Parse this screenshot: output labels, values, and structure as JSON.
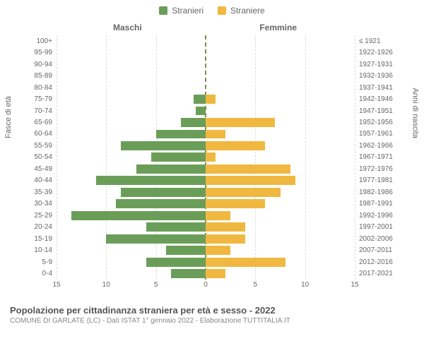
{
  "legend": {
    "male": {
      "label": "Stranieri",
      "color": "#6a9e58"
    },
    "female": {
      "label": "Straniere",
      "color": "#f0b840"
    }
  },
  "headers": {
    "male": "Maschi",
    "female": "Femmine"
  },
  "axis_labels": {
    "left": "Fasce di età",
    "right": "Anni di nascita"
  },
  "chart": {
    "type": "population-pyramid",
    "xlim": 15,
    "xticks": [
      15,
      10,
      5,
      0,
      5,
      10,
      15
    ],
    "background_color": "#ffffff",
    "grid_color": "#dddddd",
    "center_color": "#888855",
    "rows": [
      {
        "age": "100+",
        "birth": "≤ 1921",
        "m": 0,
        "f": 0
      },
      {
        "age": "95-99",
        "birth": "1922-1926",
        "m": 0,
        "f": 0
      },
      {
        "age": "90-94",
        "birth": "1927-1931",
        "m": 0,
        "f": 0
      },
      {
        "age": "85-89",
        "birth": "1932-1936",
        "m": 0,
        "f": 0
      },
      {
        "age": "80-84",
        "birth": "1937-1941",
        "m": 0,
        "f": 0
      },
      {
        "age": "75-79",
        "birth": "1942-1946",
        "m": 1.2,
        "f": 1.0
      },
      {
        "age": "70-74",
        "birth": "1947-1951",
        "m": 1.0,
        "f": 0
      },
      {
        "age": "65-69",
        "birth": "1952-1956",
        "m": 2.5,
        "f": 7.0
      },
      {
        "age": "60-64",
        "birth": "1957-1961",
        "m": 5.0,
        "f": 2.0
      },
      {
        "age": "55-59",
        "birth": "1962-1966",
        "m": 8.5,
        "f": 6.0
      },
      {
        "age": "50-54",
        "birth": "1967-1971",
        "m": 5.5,
        "f": 1.0
      },
      {
        "age": "45-49",
        "birth": "1972-1976",
        "m": 7.0,
        "f": 8.5
      },
      {
        "age": "40-44",
        "birth": "1977-1981",
        "m": 11.0,
        "f": 9.0
      },
      {
        "age": "35-39",
        "birth": "1982-1986",
        "m": 8.5,
        "f": 7.5
      },
      {
        "age": "30-34",
        "birth": "1987-1991",
        "m": 9.0,
        "f": 6.0
      },
      {
        "age": "25-29",
        "birth": "1992-1996",
        "m": 13.5,
        "f": 2.5
      },
      {
        "age": "20-24",
        "birth": "1997-2001",
        "m": 6.0,
        "f": 4.0
      },
      {
        "age": "15-19",
        "birth": "2002-2006",
        "m": 10.0,
        "f": 4.0
      },
      {
        "age": "10-14",
        "birth": "2007-2011",
        "m": 4.0,
        "f": 2.5
      },
      {
        "age": "5-9",
        "birth": "2012-2016",
        "m": 6.0,
        "f": 8.0
      },
      {
        "age": "0-4",
        "birth": "2017-2021",
        "m": 3.5,
        "f": 2.0
      }
    ]
  },
  "footer": {
    "title": "Popolazione per cittadinanza straniera per età e sesso - 2022",
    "subtitle": "COMUNE DI GARLATE (LC) - Dati ISTAT 1° gennaio 2022 - Elaborazione TUTTITALIA.IT"
  }
}
